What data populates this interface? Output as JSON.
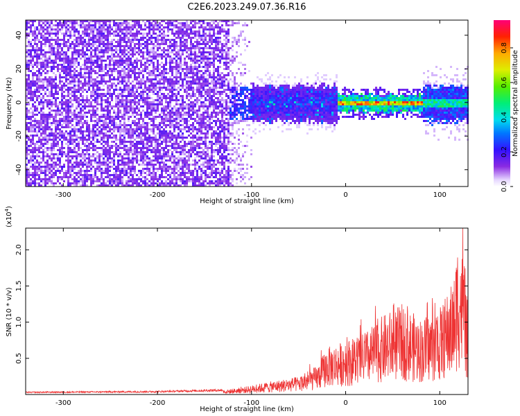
{
  "title": "C2E6.2023.249.07.36.R16",
  "chart_data": [
    {
      "type": "heatmap",
      "xlabel": "Height of straight line (km)",
      "ylabel": "Frequency (Hz)",
      "xlim": [
        -340,
        130
      ],
      "ylim": [
        -50,
        49
      ],
      "xticks": [
        -300,
        -200,
        -100,
        0,
        100
      ],
      "yticks": [
        -40,
        -20,
        0,
        20,
        40
      ],
      "colorbar": {
        "label": "Normalized spectral amplitude",
        "range": [
          0.0,
          0.96
        ],
        "ticks": [
          0.0,
          0.2,
          0.4,
          0.6,
          0.8
        ],
        "tick_labels": [
          "0.0",
          "0.2",
          "0.4",
          "0.6",
          "0.8"
        ]
      },
      "regions": [
        {
          "x": [
            -340,
            -125
          ],
          "freq_band": [
            -50,
            49
          ],
          "amplitude": "low, broadband"
        },
        {
          "x": [
            -125,
            -10
          ],
          "freq_band": [
            -12,
            12
          ],
          "amplitude": "low to medium"
        },
        {
          "x": [
            -10,
            80
          ],
          "freq_band": [
            -4,
            4
          ],
          "amplitude": "high",
          "peak_freq": 0
        },
        {
          "x": [
            80,
            130
          ],
          "freq_band": [
            -10,
            10
          ],
          "amplitude": "medium"
        }
      ]
    },
    {
      "type": "line",
      "xlabel": "Height of straight line (km)",
      "ylabel": "SNR (10 * v/v)",
      "y_multiplier_label": "(x10",
      "y_multiplier_exp": "4",
      "xlim": [
        -340,
        130
      ],
      "ylim": [
        0,
        23000
      ],
      "xticks": [
        -300,
        -200,
        -100,
        0,
        100
      ],
      "yticks": [
        5000,
        10000,
        15000,
        20000
      ],
      "ytick_labels": [
        "0.5",
        "1.0",
        "1.5",
        "2.0"
      ],
      "series_color": "#ee3333",
      "envelope": {
        "x": [
          -340,
          -200,
          -130,
          -110,
          -80,
          -50,
          -30,
          -20,
          -10,
          0,
          20,
          40,
          60,
          80,
          100,
          115,
          120,
          125,
          130
        ],
        "y": [
          300,
          400,
          600,
          1000,
          1800,
          2500,
          4000,
          6500,
          7000,
          7500,
          8500,
          11000,
          12500,
          10500,
          12000,
          16000,
          23000,
          19000,
          12000
        ]
      }
    }
  ]
}
